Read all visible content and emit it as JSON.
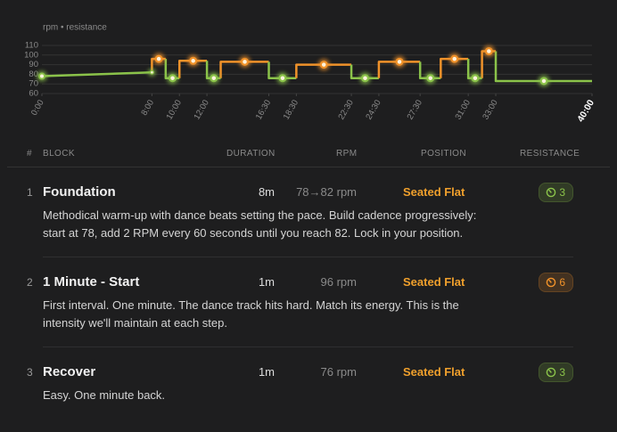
{
  "chart_data": {
    "type": "step",
    "axis_label": "rpm • resistance",
    "xlim": [
      0,
      40
    ],
    "ylim": [
      60,
      110
    ],
    "yticks": [
      60,
      70,
      80,
      90,
      100,
      110
    ],
    "xticks": [
      {
        "value": 0,
        "label": "0:00"
      },
      {
        "value": 8,
        "label": "8:00"
      },
      {
        "value": 10,
        "label": "10:00"
      },
      {
        "value": 12,
        "label": "12:00"
      },
      {
        "value": 16.5,
        "label": "16:30"
      },
      {
        "value": 18.5,
        "label": "18:30"
      },
      {
        "value": 22.5,
        "label": "22:30"
      },
      {
        "value": 24.5,
        "label": "24:30"
      },
      {
        "value": 27.5,
        "label": "27:30"
      },
      {
        "value": 31,
        "label": "31:00"
      },
      {
        "value": 33,
        "label": "33:00"
      },
      {
        "value": 40,
        "label": "40:00"
      }
    ],
    "segments": [
      {
        "start": 0,
        "end": 8,
        "from": 78,
        "to": 82,
        "color": "#8bc34a"
      },
      {
        "start": 8,
        "end": 9,
        "rpm": 96,
        "color": "#f0922a"
      },
      {
        "start": 9,
        "end": 10,
        "rpm": 76,
        "color": "#8bc34a"
      },
      {
        "start": 10,
        "end": 12,
        "rpm": 94,
        "color": "#f0922a"
      },
      {
        "start": 12,
        "end": 13,
        "rpm": 76,
        "color": "#8bc34a"
      },
      {
        "start": 13,
        "end": 16.5,
        "rpm": 93,
        "color": "#f0922a"
      },
      {
        "start": 16.5,
        "end": 18.5,
        "rpm": 76,
        "color": "#8bc34a"
      },
      {
        "start": 18.5,
        "end": 22.5,
        "rpm": 90,
        "color": "#f0922a"
      },
      {
        "start": 22.5,
        "end": 24.5,
        "rpm": 76,
        "color": "#8bc34a"
      },
      {
        "start": 24.5,
        "end": 27.5,
        "rpm": 93,
        "color": "#f0922a"
      },
      {
        "start": 27.5,
        "end": 29,
        "rpm": 76,
        "color": "#8bc34a"
      },
      {
        "start": 29,
        "end": 31,
        "rpm": 96,
        "color": "#f0922a"
      },
      {
        "start": 31,
        "end": 32,
        "rpm": 76,
        "color": "#8bc34a"
      },
      {
        "start": 32,
        "end": 33,
        "rpm": 104,
        "color": "#f0922a"
      },
      {
        "start": 33,
        "end": 40,
        "rpm": 73,
        "color": "#8bc34a"
      }
    ]
  },
  "table": {
    "headers": [
      "#",
      "BLOCK",
      "DURATION",
      "RPM",
      "POSITION",
      "RESISTANCE"
    ],
    "rows": [
      {
        "number": "1",
        "block": "Foundation",
        "duration": "8m",
        "rpm": "78→82 rpm",
        "position": "Seated Flat",
        "resistance": "3",
        "resistance_color": "#8bc34a",
        "description": "Methodical warm-up with dance beats setting the pace. Build cadence progressively: start at 78, add 2 RPM every 60 seconds until you reach 82. Lock in your position."
      },
      {
        "number": "2",
        "block": "1 Minute - Start",
        "duration": "1m",
        "rpm": "96 rpm",
        "position": "Seated Flat",
        "resistance": "6",
        "resistance_color": "#f0922a",
        "description": "First interval. One minute. The dance track hits hard. Match its energy. This is the intensity we'll maintain at each step."
      },
      {
        "number": "3",
        "block": "Recover",
        "duration": "1m",
        "rpm": "76 rpm",
        "position": "Seated Flat",
        "resistance": "3",
        "resistance_color": "#8bc34a",
        "description": "Easy. One minute back."
      }
    ]
  }
}
